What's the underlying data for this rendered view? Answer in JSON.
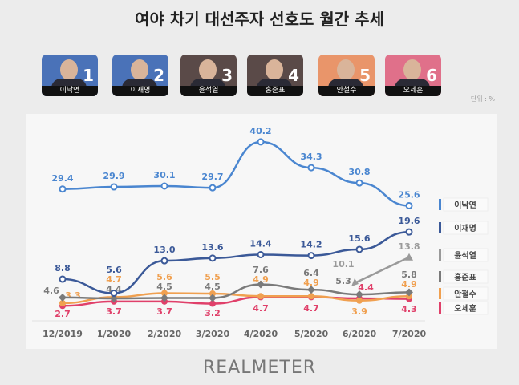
{
  "title": "여야 차기 대선주자 선호도 월간 추세",
  "unit": "단위 : %",
  "logo": "REALMETER",
  "candidates": [
    {
      "rank": "1",
      "name": "이낙연",
      "color": "#4a72b8"
    },
    {
      "rank": "2",
      "name": "이재명",
      "color": "#4a72b8"
    },
    {
      "rank": "3",
      "name": "윤석열",
      "color": "#5a4a48"
    },
    {
      "rank": "4",
      "name": "홍준표",
      "color": "#5a4a48"
    },
    {
      "rank": "5",
      "name": "안철수",
      "color": "#e9956a"
    },
    {
      "rank": "6",
      "name": "오세훈",
      "color": "#e0708a"
    }
  ],
  "chart_data": {
    "type": "line",
    "categories": [
      "12/2019",
      "1/2020",
      "2/2020",
      "3/2020",
      "4/2020",
      "5/2020",
      "6/2020",
      "7/2020"
    ],
    "ylim": [
      0,
      42
    ],
    "grid": false,
    "legend_placement": "right",
    "series": [
      {
        "name": "이낙연",
        "color": "#4a86d0",
        "values": [
          29.4,
          29.9,
          30.1,
          29.7,
          40.2,
          34.3,
          30.8,
          25.6
        ]
      },
      {
        "name": "이재명",
        "color": "#3b5998",
        "values": [
          8.8,
          5.6,
          13.0,
          13.6,
          14.4,
          14.2,
          15.6,
          19.6
        ]
      },
      {
        "name": "윤석열",
        "color": "#9a9a9a",
        "values": [
          null,
          null,
          null,
          null,
          null,
          null,
          10.1,
          13.8
        ]
      },
      {
        "name": "홍준표",
        "color": "#7a7a7a",
        "values": [
          4.6,
          4.4,
          4.5,
          4.5,
          7.6,
          6.4,
          5.3,
          5.8
        ]
      },
      {
        "name": "안철수",
        "color": "#f0a050",
        "values": [
          3.3,
          4.7,
          5.6,
          5.5,
          4.9,
          4.9,
          3.9,
          4.9
        ]
      },
      {
        "name": "오세훈",
        "color": "#e0406a",
        "values": [
          2.7,
          3.7,
          3.7,
          3.2,
          4.7,
          4.7,
          4.4,
          4.3
        ]
      }
    ]
  }
}
